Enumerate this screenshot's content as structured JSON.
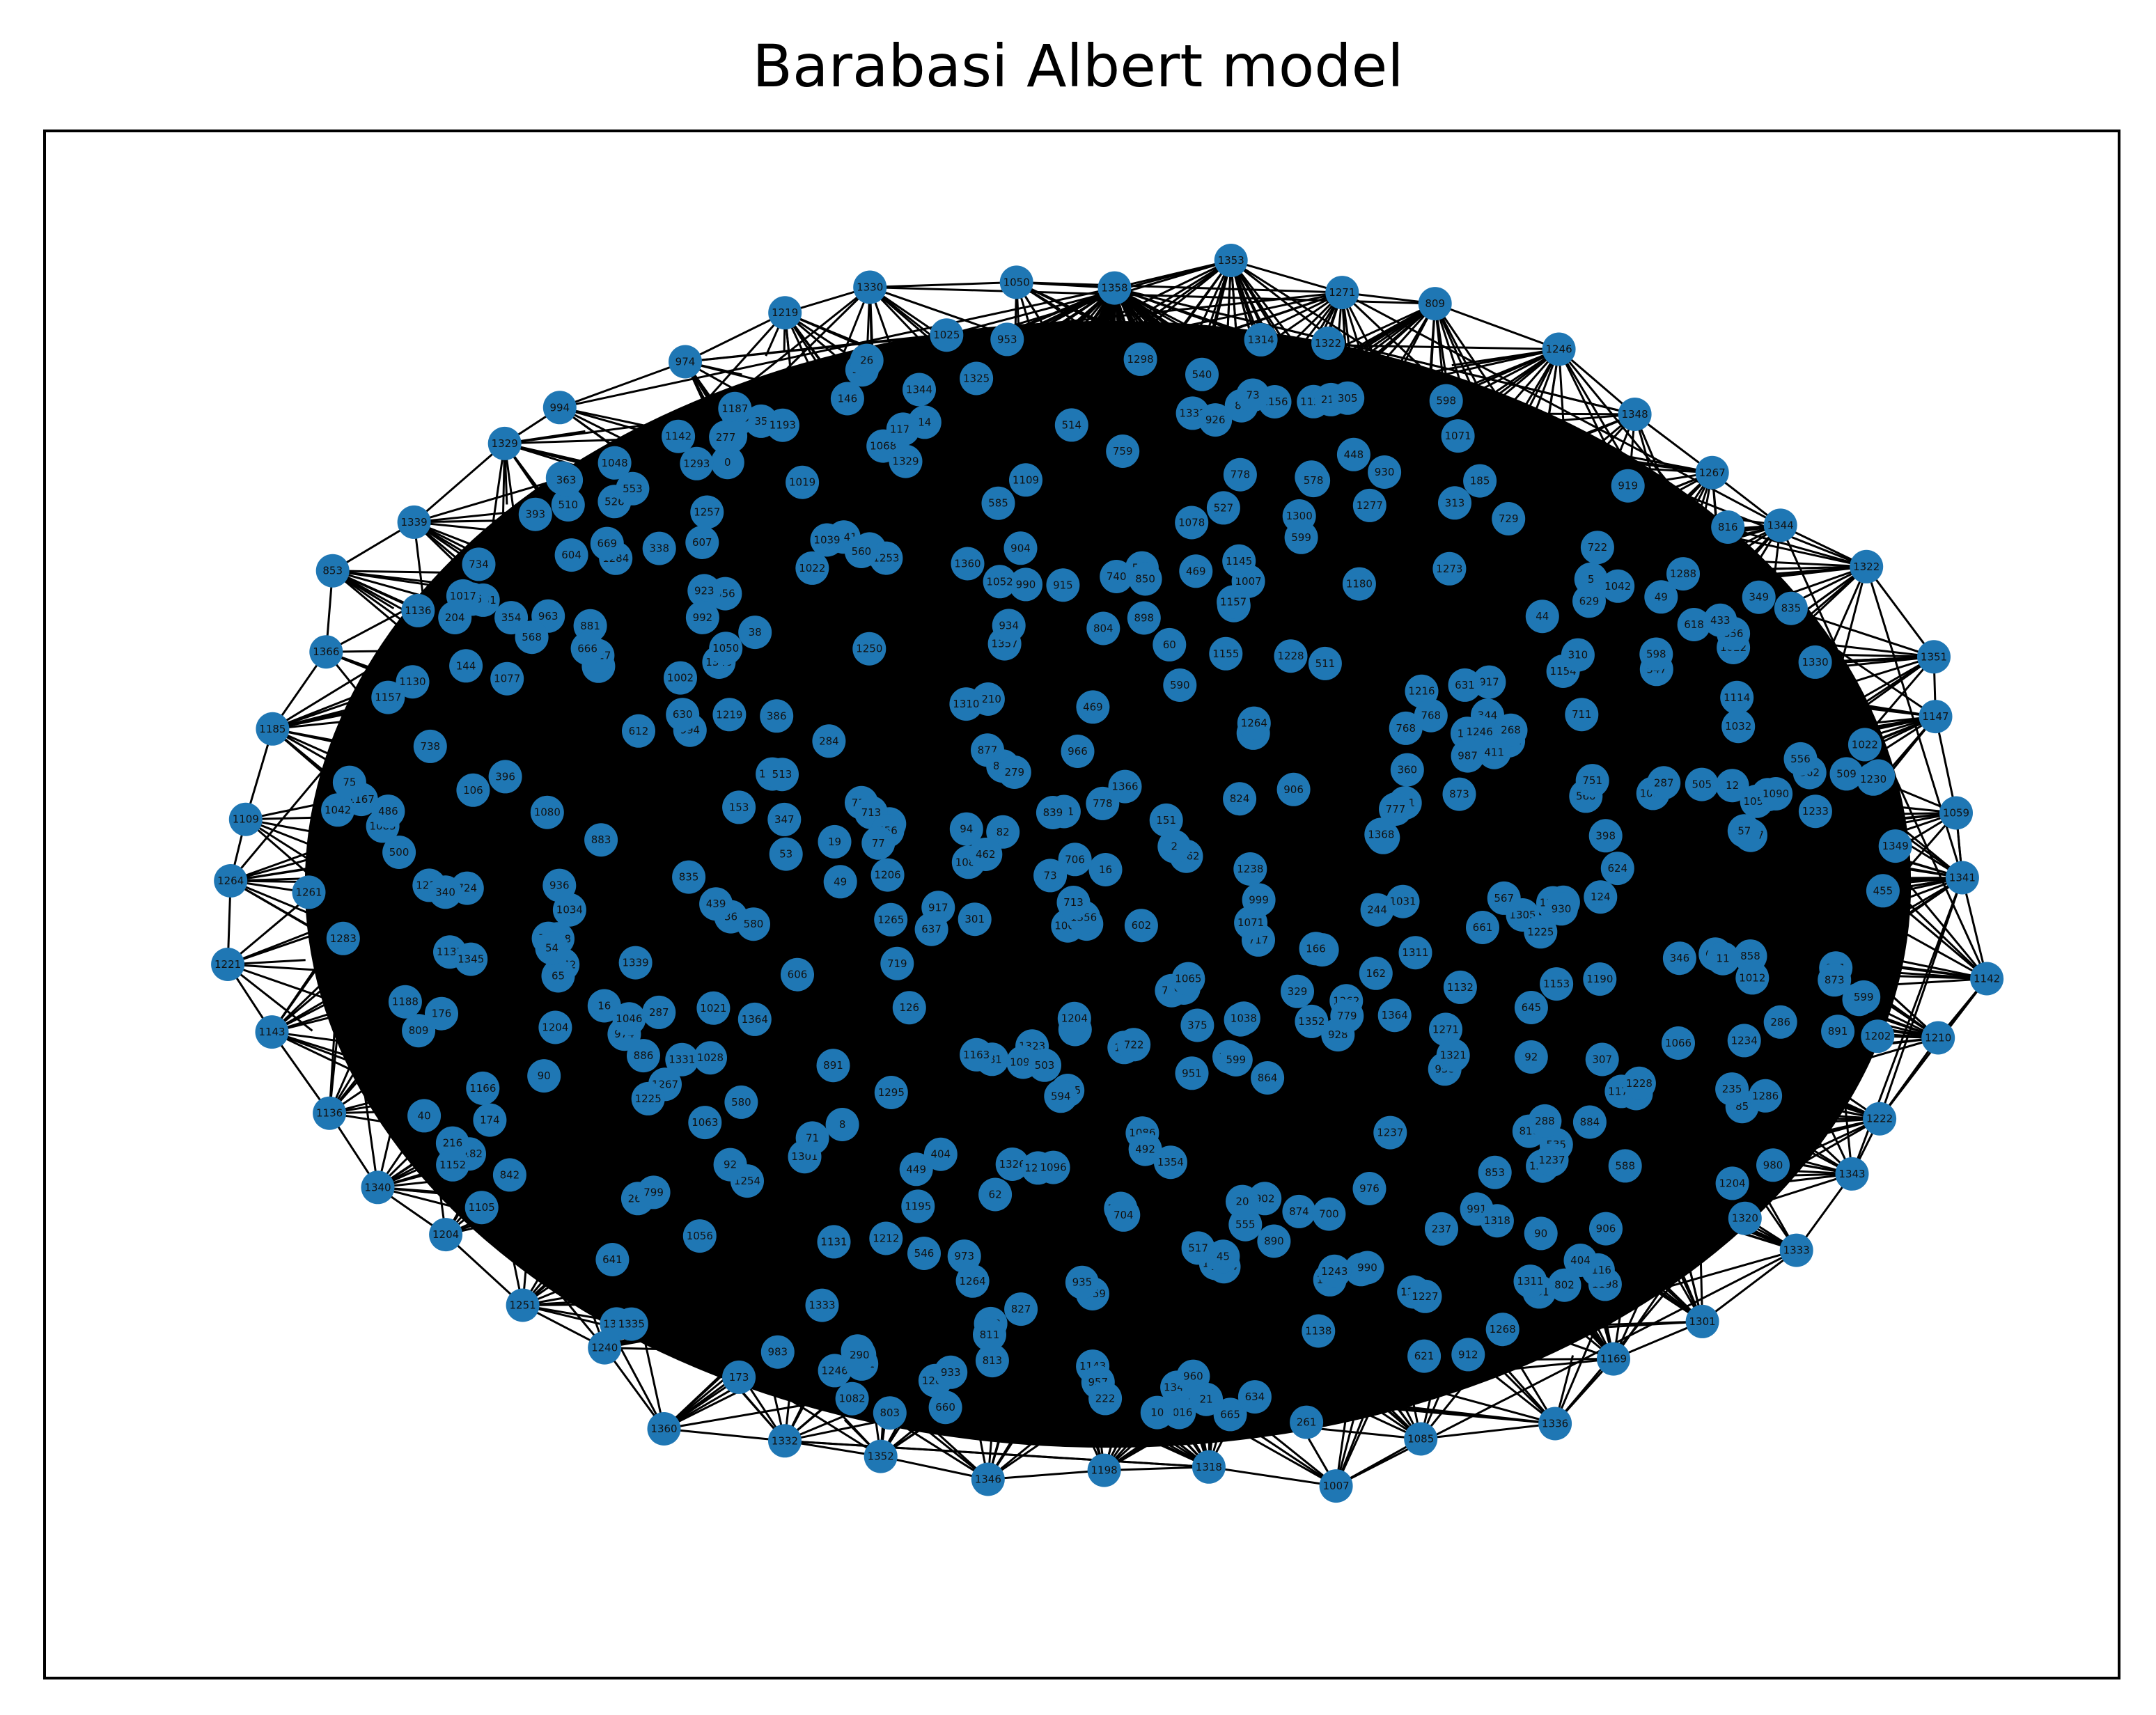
{
  "title": "Barabasi Albert model",
  "style": {
    "node_color": "#1f77b4",
    "edge_color": "#000000",
    "label_color": "#111111",
    "background": "#ffffff"
  },
  "graph": {
    "type": "network",
    "model": "Barabasi Albert",
    "num_nodes": 1370,
    "node_ids_range": [
      0,
      1369
    ],
    "layout": "spring (elliptical cloud, dense black core)",
    "labels_visible": true,
    "boundary_nodes": [
      1358,
      1353,
      1077,
      980,
      1271,
      809,
      1246,
      1348,
      1267,
      1291,
      1344,
      1218,
      1322,
      1351,
      1147,
      1059,
      1257,
      1341,
      1142,
      1210,
      1168,
      1222,
      1343,
      1324,
      1333,
      1301,
      1169,
      1248,
      1336,
      1085,
      1007,
      1308,
      1318,
      1198,
      1060,
      1346,
      1262,
      1352,
      1332,
      1360,
      1240,
      1251,
      1204,
      1340,
      1354,
      1208,
      1136,
      1143,
      1221,
      1264,
      1109,
      1068,
      1185,
      1366,
      853,
      1339,
      1329,
      994,
      974,
      1219,
      1196,
      1330,
      1050,
      1216
    ],
    "sample_labels": [
      1358,
      1353,
      1077,
      980,
      1271,
      809,
      1246,
      1348,
      1267,
      1291,
      1344,
      1322,
      1351,
      1147,
      1059,
      1257,
      1341,
      1142,
      1210,
      1222,
      1343,
      1333,
      1301,
      1169,
      1248,
      1336,
      1085,
      1007,
      1318,
      1198,
      1060,
      1346,
      1262,
      1352,
      1332,
      1360,
      1240,
      1251,
      1204,
      1340,
      1354,
      1136,
      1143,
      1221,
      1264,
      1109,
      1068,
      1185,
      1366,
      853,
      1339,
      1329,
      994,
      974,
      1219,
      1330,
      1050,
      1216,
      1190,
      1105,
      1238,
      1331,
      912,
      803,
      1025,
      527,
      486,
      736,
      881,
      1091,
      618,
      858,
      1209,
      953,
      1167,
      951,
      665,
      874,
      983,
      926,
      1357,
      1071,
      898,
      929,
      704,
      763,
      645,
      510,
      741,
      957,
      724,
      718,
      599,
      607,
      481,
      910,
      1078,
      1202,
      1129,
      1086,
      1187,
      1225,
      1054,
      1135,
      1080,
      1177,
      1326,
      1311,
      1273,
      1356,
      1320,
      1278,
      1233,
      1325,
      1297,
      1310,
      1145,
      1039,
      1154,
      1012,
      928,
      624,
      637,
      711,
      752,
      1156,
      891,
      966,
      861,
      1182,
      1250,
      1038,
      1127,
      877,
      1244,
      1364,
      958,
      845,
      1283,
      1234,
      1253,
      1031,
      1138,
      930,
      1184,
      960,
      1305,
      1195,
      886,
      717,
      906,
      1042,
      1155,
      1132,
      1022,
      1335,
      1323,
      1056,
      1034,
      1345,
      1082,
      1130,
      1298,
      1254,
      991,
      1212,
      1300,
      842,
      1094,
      1063,
      1277,
      835,
      1116,
      963,
      973,
      1116,
      503,
      802,
      602,
      740,
      768,
      560,
      517,
      555,
      585,
      514,
      500,
      573,
      469,
      386,
      301,
      287,
      210,
      176,
      94,
      101,
      124,
      126,
      92,
      144,
      73,
      151,
      82,
      71,
      162,
      173,
      204,
      216,
      85,
      16,
      290,
      344,
      284,
      356,
      462,
      449,
      511,
      577,
      305,
      526,
      531,
      588,
      590,
      612,
      629,
      634,
      660,
      714,
      778,
      816,
      850,
      864,
      902,
      917,
      934,
      968,
      1002,
      1046,
      1096,
      1114,
      1163,
      1193,
      1214,
      1229,
      1261,
      1288,
      1307,
      1342,
      1349,
      1362,
      1368,
      0,
      5,
      8,
      12,
      14,
      20,
      26,
      38,
      40,
      49,
      53,
      57,
      65,
      90
    ],
    "ring_labels": [
      1358,
      1353,
      1271,
      809,
      1246,
      1348,
      1267,
      1344,
      1322,
      1351,
      1147,
      1059,
      1341,
      1142,
      1210,
      1222,
      1343,
      1333,
      1301,
      1169,
      1336,
      1085,
      1007,
      1318,
      1198,
      1346,
      1352,
      1332,
      1360,
      1240,
      1251,
      1204,
      1340,
      1136,
      1143,
      1221,
      1264,
      1109,
      1185,
      1366,
      853,
      1339,
      1329,
      994,
      974,
      1219,
      1330,
      1050
    ]
  }
}
